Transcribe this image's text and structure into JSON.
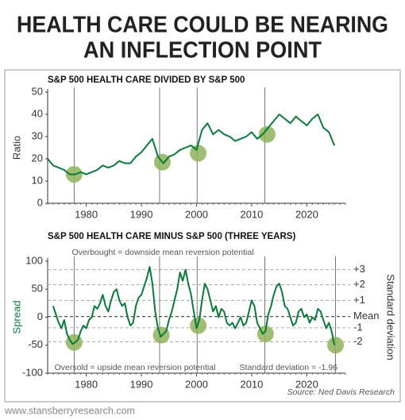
{
  "title_lines": [
    "HEALTH CARE COULD BE NEARING",
    "AN INFLECTION POINT"
  ],
  "footer": "www.stansberryresearch.com",
  "chart_data": [
    {
      "type": "line",
      "title": "S&P 500 HEALTH CARE DIVIDED BY S&P 500",
      "ylabel": "Ratio",
      "xlim": [
        1973,
        2027
      ],
      "xticks": [
        1980,
        1990,
        2000,
        2010,
        2020
      ],
      "ylim": [
        0,
        50
      ],
      "yticks": [
        0,
        10,
        20,
        30,
        40,
        50
      ],
      "grid": false,
      "series": [
        {
          "color": "#0b7a3b",
          "x": [
            1973,
            1974,
            1975,
            1976,
            1977,
            1978,
            1979,
            1980,
            1981,
            1982,
            1983,
            1984,
            1985,
            1986,
            1987,
            1988,
            1989,
            1990,
            1991,
            1992,
            1993,
            1994,
            1995,
            1996,
            1997,
            1998,
            1999,
            2000,
            2001,
            2002,
            2003,
            2004,
            2005,
            2006,
            2007,
            2008,
            2009,
            2010,
            2011,
            2012,
            2013,
            2014,
            2015,
            2016,
            2017,
            2018,
            2019,
            2020,
            2021,
            2022,
            2023,
            2024,
            2025
          ],
          "values": [
            20,
            17,
            16,
            15,
            13,
            13,
            14,
            13,
            14,
            15,
            17,
            16,
            17,
            19,
            18,
            18,
            21,
            23,
            26,
            29,
            21,
            18,
            21,
            22,
            24,
            25,
            26,
            24,
            33,
            36,
            31,
            33,
            31,
            30,
            28,
            29,
            30,
            32,
            29,
            31,
            34,
            37,
            40,
            38,
            36,
            39,
            37,
            35,
            38,
            40,
            34,
            32,
            26
          ]
        }
      ],
      "vlines": [
        1977.8,
        1993.3,
        2000.1,
        2012.4
      ],
      "highlights": [
        {
          "x": 1977.8,
          "y": 13
        },
        {
          "x": 1993.8,
          "y": 18.5
        },
        {
          "x": 2000.3,
          "y": 22.5
        },
        {
          "x": 2012.8,
          "y": 31
        }
      ]
    },
    {
      "type": "line",
      "title": "S&P 500 HEALTH CARE MINUS S&P 500 (THREE YEARS)",
      "ylabel": "Spread",
      "y2label": "Standard deviation",
      "xlim": [
        1973,
        2027
      ],
      "xticks": [
        1980,
        1990,
        2000,
        2010,
        2020
      ],
      "ylim": [
        -100,
        100
      ],
      "yticks": [
        -100,
        -50,
        0,
        50,
        100
      ],
      "grid": false,
      "y2lim": [
        -100,
        100
      ],
      "y2ticks": [
        {
          "value": 85,
          "label": "+3"
        },
        {
          "value": 58,
          "label": "+2"
        },
        {
          "value": 30,
          "label": "+1"
        },
        {
          "value": 1,
          "label": "Mean"
        },
        {
          "value": -19,
          "label": "-1"
        },
        {
          "value": -44,
          "label": "-2"
        }
      ],
      "series": [
        {
          "color": "#0b7a3b",
          "x": [
            1974,
            1974.5,
            1975,
            1975.5,
            1976,
            1976.5,
            1977,
            1977.5,
            1978,
            1978.5,
            1979,
            1979.5,
            1980,
            1980.5,
            1981,
            1981.5,
            1982,
            1982.5,
            1983,
            1983.5,
            1984,
            1984.5,
            1985,
            1985.5,
            1986,
            1986.5,
            1987,
            1987.5,
            1988,
            1988.5,
            1989,
            1989.5,
            1990,
            1990.5,
            1991,
            1991.5,
            1992,
            1992.5,
            1993,
            1993.5,
            1994,
            1994.5,
            1995,
            1995.5,
            1996,
            1996.5,
            1997,
            1997.5,
            1998,
            1998.5,
            1999,
            1999.5,
            2000,
            2000.5,
            2001,
            2001.5,
            2002,
            2002.5,
            2003,
            2003.5,
            2004,
            2004.5,
            2005,
            2005.5,
            2006,
            2006.5,
            2007,
            2007.5,
            2008,
            2008.5,
            2009,
            2009.5,
            2010,
            2010.5,
            2011,
            2011.5,
            2012,
            2012.5,
            2013,
            2013.5,
            2014,
            2014.5,
            2015,
            2015.5,
            2016,
            2016.5,
            2017,
            2017.5,
            2018,
            2018.5,
            2019,
            2019.5,
            2020,
            2020.5,
            2021,
            2021.5,
            2022,
            2022.5,
            2023,
            2023.5,
            2024,
            2024.5,
            2025
          ],
          "values": [
            20,
            5,
            -10,
            -20,
            -5,
            -30,
            -40,
            -48,
            -45,
            -40,
            -25,
            -15,
            -20,
            -5,
            0,
            20,
            15,
            25,
            40,
            20,
            10,
            30,
            45,
            50,
            30,
            20,
            25,
            0,
            -15,
            -10,
            20,
            35,
            40,
            55,
            70,
            90,
            60,
            10,
            -20,
            -35,
            -30,
            -25,
            -5,
            10,
            30,
            50,
            80,
            65,
            85,
            60,
            40,
            10,
            -20,
            -5,
            30,
            60,
            50,
            30,
            10,
            20,
            0,
            15,
            10,
            -10,
            -15,
            -10,
            -20,
            -10,
            0,
            -15,
            -10,
            10,
            30,
            20,
            -10,
            -20,
            -30,
            -25,
            5,
            20,
            40,
            55,
            60,
            45,
            20,
            15,
            0,
            -15,
            -10,
            10,
            15,
            0,
            5,
            -10,
            0,
            -5,
            15,
            10,
            -5,
            -20,
            -10,
            -25,
            -50
          ]
        }
      ],
      "vlines": [
        1977.8,
        1993.3,
        2000.1,
        2012.4,
        2025.2
      ],
      "highlights": [
        {
          "x": 1977.8,
          "y": -45
        },
        {
          "x": 1993.6,
          "y": -32
        },
        {
          "x": 2000.3,
          "y": -15
        },
        {
          "x": 2012.5,
          "y": -30
        },
        {
          "x": 2025.2,
          "y": -50
        }
      ],
      "annotations": [
        "Overbought = downside mean reversion potential",
        "Oversold = upside mean reversion potential",
        "Standard deviation = -1.96"
      ],
      "source": "Source: Ned Davis Research"
    }
  ]
}
